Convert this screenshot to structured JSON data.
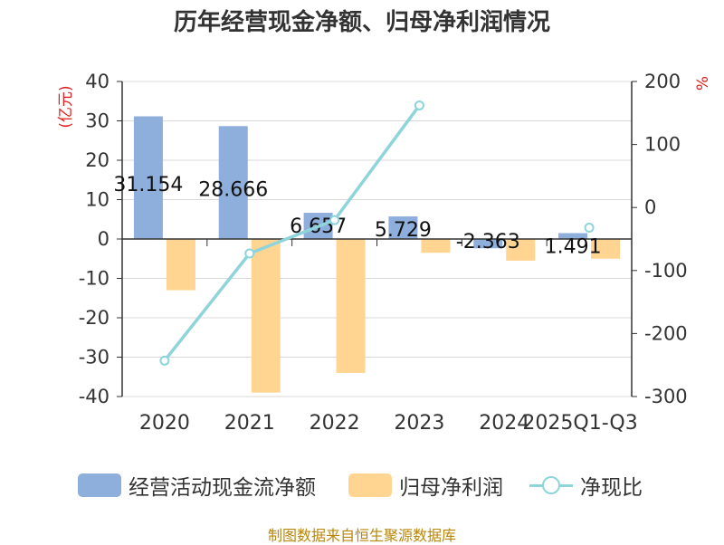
{
  "chart_data": {
    "type": "bar",
    "title": "历年经营现金净额、归母净利润情况",
    "categories": [
      "2020",
      "2021",
      "2022",
      "2023",
      "2024",
      "2025Q1-Q3"
    ],
    "series": [
      {
        "name": "经营活动现金流净额",
        "type": "bar",
        "axis": "left",
        "color": "#8eaedb",
        "values": [
          31.154,
          28.666,
          6.657,
          5.729,
          -2.363,
          1.491
        ],
        "labels": [
          "31.154",
          "28.666",
          "6.657",
          "5.729",
          "-2.363",
          "1.491"
        ]
      },
      {
        "name": "归母净利润",
        "type": "bar",
        "axis": "left",
        "color": "#ffd591",
        "values": [
          -13,
          -39,
          -34,
          -3.5,
          -5.5,
          -5
        ]
      },
      {
        "name": "净现比",
        "type": "line",
        "axis": "right",
        "color": "#8ed4db",
        "values": [
          -243,
          -73,
          -20,
          162,
          null,
          -32
        ]
      }
    ],
    "y_left": {
      "label": "(亿元)",
      "ylim": [
        -40,
        40
      ],
      "ticks": [
        40,
        30,
        20,
        10,
        0,
        -10,
        -20,
        -30,
        -40
      ]
    },
    "y_right": {
      "label": "%",
      "ylim": [
        -300,
        200
      ],
      "ticks": [
        200,
        100,
        0,
        -100,
        -200,
        -300
      ]
    },
    "grid": true,
    "legend_position": "bottom"
  },
  "legend": {
    "items": [
      {
        "label": "经营活动现金流净额",
        "color": "#8eaedb"
      },
      {
        "label": "归母净利润",
        "color": "#ffd591"
      },
      {
        "label": "净现比",
        "color": "#8ed4db"
      }
    ]
  },
  "source": "制图数据来自恒生聚源数据库"
}
